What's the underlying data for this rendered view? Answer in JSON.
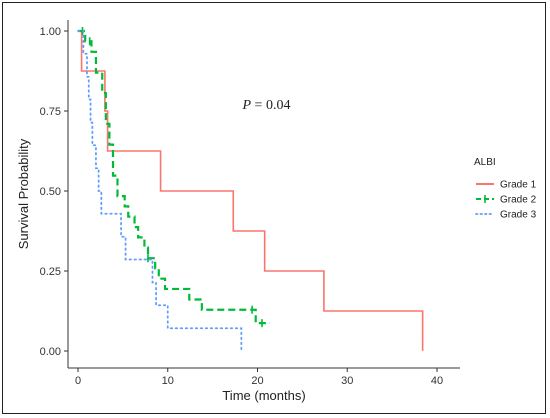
{
  "chart_data": {
    "type": "line",
    "subtype": "kaplan-meier",
    "title": "",
    "xlabel": "Time (months)",
    "ylabel": "Survival Probability",
    "xlim": [
      0,
      42
    ],
    "ylim": [
      0,
      1
    ],
    "x_ticks": [
      0,
      10,
      20,
      30,
      40
    ],
    "y_ticks": [
      0.0,
      0.25,
      0.5,
      0.75,
      1.0
    ],
    "y_tick_labels": [
      "0.00",
      "0.25",
      "0.50",
      "0.75",
      "1.00"
    ],
    "grid": false,
    "annotation": {
      "prefix": "P",
      "text": " = 0.04",
      "x": 21,
      "y": 0.75
    },
    "legend": {
      "title": "ALBI",
      "placement": "right",
      "entries": [
        "Grade 1",
        "Grade 2",
        "Grade 3"
      ]
    },
    "series": [
      {
        "name": "Grade 1",
        "color": "#F8766D",
        "dash": "solid",
        "steps": [
          [
            0,
            1.0
          ],
          [
            0.4,
            0.875
          ],
          [
            3.0,
            0.75
          ],
          [
            3.3,
            0.625
          ],
          [
            9.2,
            0.5
          ],
          [
            17.3,
            0.375
          ],
          [
            20.8,
            0.25
          ],
          [
            27.4,
            0.125
          ],
          [
            38.4,
            0.0
          ]
        ],
        "end": 38.4,
        "censors": []
      },
      {
        "name": "Grade 2",
        "color": "#00BA38",
        "dash": "dashed",
        "steps": [
          [
            0,
            1.0
          ],
          [
            0.8,
            0.968
          ],
          [
            1.5,
            0.935
          ],
          [
            2.0,
            0.87
          ],
          [
            2.7,
            0.806
          ],
          [
            3.1,
            0.71
          ],
          [
            3.5,
            0.645
          ],
          [
            3.9,
            0.548
          ],
          [
            4.4,
            0.484
          ],
          [
            5.2,
            0.452
          ],
          [
            5.6,
            0.42
          ],
          [
            6.3,
            0.387
          ],
          [
            6.7,
            0.355
          ],
          [
            7.4,
            0.323
          ],
          [
            7.8,
            0.29
          ],
          [
            8.6,
            0.258
          ],
          [
            9.0,
            0.226
          ],
          [
            9.7,
            0.194
          ],
          [
            12.4,
            0.161
          ],
          [
            13.8,
            0.129
          ],
          [
            19.8,
            0.087
          ]
        ],
        "end": 21.4,
        "censors": [
          [
            0.5,
            1.0
          ],
          [
            1.3,
            0.968
          ],
          [
            7.8,
            0.29
          ],
          [
            19.4,
            0.129
          ],
          [
            20.5,
            0.087
          ]
        ]
      },
      {
        "name": "Grade 3",
        "color": "#619CFF",
        "dash": "dotted",
        "steps": [
          [
            0,
            1.0
          ],
          [
            0.6,
            0.929
          ],
          [
            1.0,
            0.857
          ],
          [
            1.2,
            0.786
          ],
          [
            1.4,
            0.714
          ],
          [
            1.6,
            0.643
          ],
          [
            2.0,
            0.571
          ],
          [
            2.3,
            0.5
          ],
          [
            2.6,
            0.429
          ],
          [
            4.8,
            0.357
          ],
          [
            5.3,
            0.286
          ],
          [
            8.3,
            0.214
          ],
          [
            8.7,
            0.143
          ],
          [
            10.0,
            0.071
          ],
          [
            18.2,
            0.0
          ]
        ],
        "end": 18.2,
        "censors": []
      }
    ]
  }
}
